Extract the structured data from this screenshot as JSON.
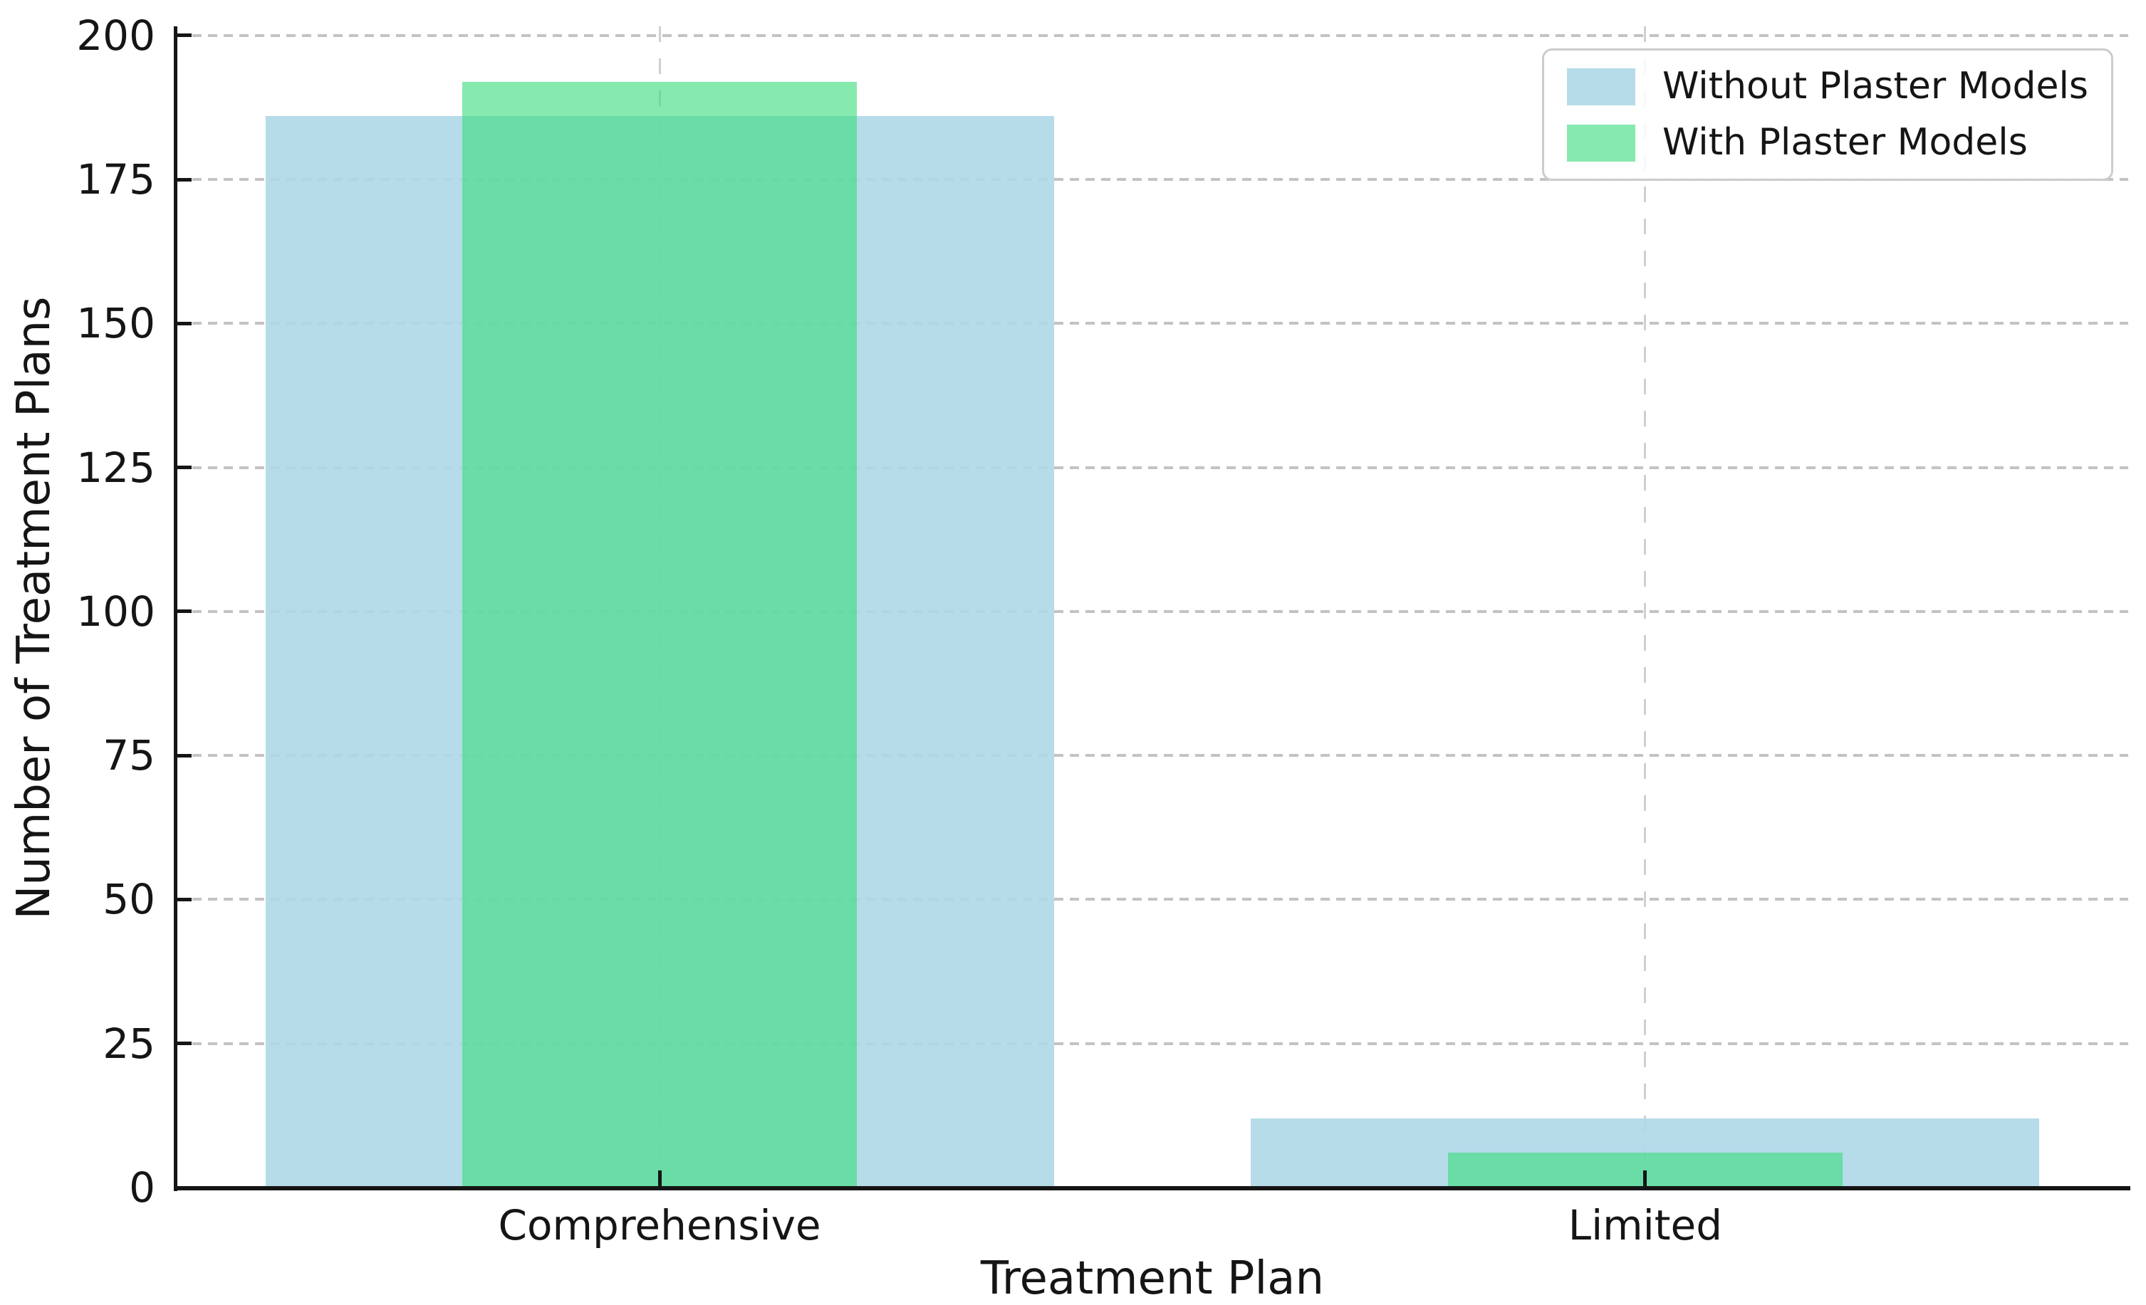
{
  "chart_data": {
    "type": "bar",
    "categories": [
      "Comprehensive",
      "Limited"
    ],
    "series": [
      {
        "name": "Without Plaster Models",
        "values": [
          186,
          12
        ],
        "color": "173,216,230",
        "opacity": 0.9,
        "bar_width_frac": 0.8
      },
      {
        "name": "With Plaster Models",
        "values": [
          192,
          6
        ],
        "color": "60,220,125",
        "opacity": 0.62,
        "bar_width_frac": 0.4
      }
    ],
    "title": "",
    "xlabel": "Treatment Plan",
    "ylabel": "Number of Treatment Plans",
    "ylim": [
      0,
      201.6
    ],
    "yticks": [
      0,
      25,
      50,
      75,
      100,
      125,
      150,
      175,
      200
    ],
    "grid": "dashed, horizontal and vertical, behind bars",
    "legend_position": "upper right"
  },
  "colors": {
    "background": "#ffffff",
    "grid": "#c3c3c3",
    "spine": "#151515",
    "text": "#151515",
    "legend_border": "#cccccc"
  }
}
